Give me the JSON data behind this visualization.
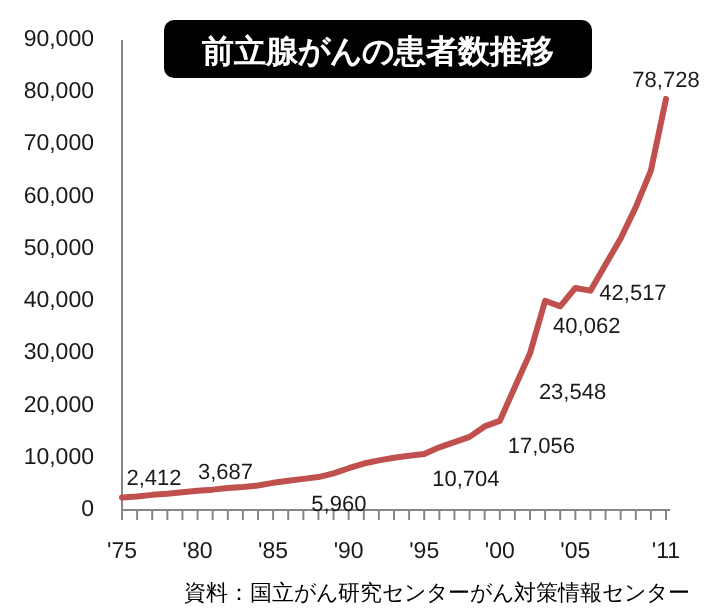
{
  "chart_data": {
    "type": "line",
    "title": "前立腺がんの患者数推移",
    "x": [
      1975,
      1976,
      1977,
      1978,
      1979,
      1980,
      1981,
      1982,
      1983,
      1984,
      1985,
      1986,
      1987,
      1988,
      1989,
      1990,
      1991,
      1992,
      1993,
      1994,
      1995,
      1996,
      1997,
      1998,
      1999,
      2000,
      2001,
      2002,
      2003,
      2004,
      2005,
      2006,
      2007,
      2008,
      2009,
      2010,
      2011
    ],
    "series": [
      {
        "color": "#c0504d",
        "values": [
          2412,
          2600,
          2900,
          3100,
          3400,
          3687,
          3900,
          4200,
          4400,
          4700,
          5200,
          5600,
          5960,
          6300,
          7000,
          8000,
          8900,
          9500,
          10000,
          10400,
          10704,
          12000,
          13000,
          14000,
          16000,
          17056,
          23548,
          30000,
          40062,
          39000,
          42517,
          42000,
          47000,
          52000,
          58000,
          65000,
          78728
        ],
        "value_labels": [
          "2,412",
          null,
          null,
          null,
          null,
          "3,687",
          null,
          null,
          null,
          null,
          null,
          null,
          "5,960",
          null,
          null,
          null,
          null,
          null,
          null,
          null,
          "10,704",
          null,
          null,
          null,
          null,
          "17,056",
          "23,548",
          null,
          "40,062",
          null,
          "42,517",
          null,
          null,
          null,
          null,
          null,
          "78,728"
        ]
      }
    ],
    "xlim": [
      1975,
      2011
    ],
    "xticks": [
      {
        "value": 1975,
        "label": "'75"
      },
      {
        "value": 1976,
        "label": null
      },
      {
        "value": 1977,
        "label": null
      },
      {
        "value": 1978,
        "label": null
      },
      {
        "value": 1979,
        "label": null
      },
      {
        "value": 1980,
        "label": "'80"
      },
      {
        "value": 1981,
        "label": null
      },
      {
        "value": 1982,
        "label": null
      },
      {
        "value": 1983,
        "label": null
      },
      {
        "value": 1984,
        "label": null
      },
      {
        "value": 1985,
        "label": "'85"
      },
      {
        "value": 1986,
        "label": null
      },
      {
        "value": 1987,
        "label": null
      },
      {
        "value": 1988,
        "label": null
      },
      {
        "value": 1989,
        "label": null
      },
      {
        "value": 1990,
        "label": "'90"
      },
      {
        "value": 1991,
        "label": null
      },
      {
        "value": 1992,
        "label": null
      },
      {
        "value": 1993,
        "label": null
      },
      {
        "value": 1994,
        "label": null
      },
      {
        "value": 1995,
        "label": "'95"
      },
      {
        "value": 1996,
        "label": null
      },
      {
        "value": 1997,
        "label": null
      },
      {
        "value": 1998,
        "label": null
      },
      {
        "value": 1999,
        "label": null
      },
      {
        "value": 2000,
        "label": "'00"
      },
      {
        "value": 2001,
        "label": null
      },
      {
        "value": 2002,
        "label": null
      },
      {
        "value": 2003,
        "label": null
      },
      {
        "value": 2004,
        "label": null
      },
      {
        "value": 2005,
        "label": "'05"
      },
      {
        "value": 2006,
        "label": null
      },
      {
        "value": 2007,
        "label": null
      },
      {
        "value": 2008,
        "label": null
      },
      {
        "value": 2009,
        "label": null
      },
      {
        "value": 2010,
        "label": null
      },
      {
        "value": 2011,
        "label": "'11"
      }
    ],
    "ylim": [
      0,
      90000
    ],
    "yticks": [
      {
        "value": 0,
        "label": "0"
      },
      {
        "value": 10000,
        "label": "10,000"
      },
      {
        "value": 20000,
        "label": "20,000"
      },
      {
        "value": 30000,
        "label": "30,000"
      },
      {
        "value": 40000,
        "label": "40,000"
      },
      {
        "value": 50000,
        "label": "50,000"
      },
      {
        "value": 60000,
        "label": "60,000"
      },
      {
        "value": 70000,
        "label": "70,000"
      },
      {
        "value": 80000,
        "label": "80,000"
      },
      {
        "value": 90000,
        "label": "90,000"
      }
    ],
    "grid": false,
    "marker": "none",
    "line_style": "solid",
    "annotations": [
      "資料：国立がん研究センターがん対策情報センター"
    ]
  }
}
